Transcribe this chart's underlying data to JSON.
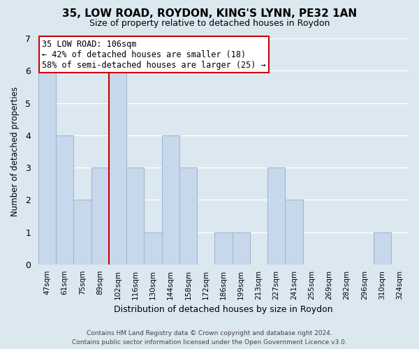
{
  "title": "35, LOW ROAD, ROYDON, KING'S LYNN, PE32 1AN",
  "subtitle": "Size of property relative to detached houses in Roydon",
  "xlabel": "Distribution of detached houses by size in Roydon",
  "ylabel": "Number of detached properties",
  "categories": [
    "47sqm",
    "61sqm",
    "75sqm",
    "89sqm",
    "102sqm",
    "116sqm",
    "130sqm",
    "144sqm",
    "158sqm",
    "172sqm",
    "186sqm",
    "199sqm",
    "213sqm",
    "227sqm",
    "241sqm",
    "255sqm",
    "269sqm",
    "282sqm",
    "296sqm",
    "310sqm",
    "324sqm"
  ],
  "values": [
    6,
    4,
    2,
    3,
    6,
    3,
    1,
    4,
    3,
    0,
    1,
    1,
    0,
    3,
    2,
    0,
    0,
    0,
    0,
    1,
    0
  ],
  "bar_color": "#c8d8ec",
  "bar_edge_color": "#a0b8d0",
  "highlight_line_color": "#cc0000",
  "highlight_bar_index": 4,
  "annotation_title": "35 LOW ROAD: 106sqm",
  "annotation_line1": "← 42% of detached houses are smaller (18)",
  "annotation_line2": "58% of semi-detached houses are larger (25) →",
  "annotation_box_facecolor": "#ffffff",
  "annotation_box_edgecolor": "#cc0000",
  "ylim": [
    0,
    7
  ],
  "yticks": [
    0,
    1,
    2,
    3,
    4,
    5,
    6,
    7
  ],
  "footer_line1": "Contains HM Land Registry data © Crown copyright and database right 2024.",
  "footer_line2": "Contains public sector information licensed under the Open Government Licence v3.0.",
  "background_color": "#dce8f0",
  "grid_color": "#ffffff",
  "title_fontsize": 11,
  "subtitle_fontsize": 9
}
